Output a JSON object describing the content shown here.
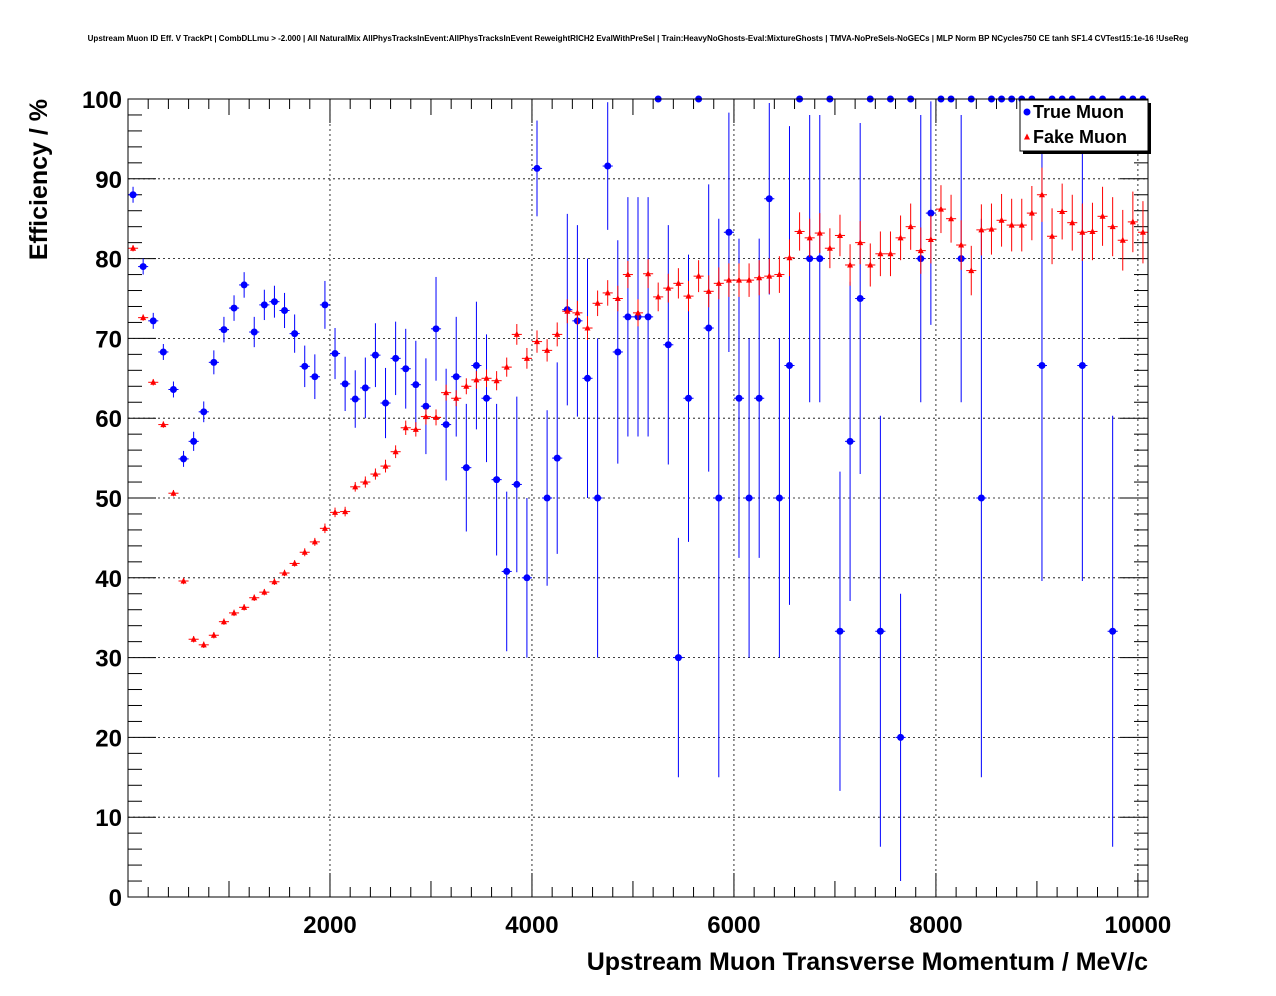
{
  "chart_data": {
    "type": "scatter",
    "title": "Upstream Muon ID Eff. V TrackPt | CombDLLmu > -2.000 | All NaturalMix AllPhysTracksInEvent:AllPhysTracksInEvent ReweightRICH2 EvalWithPreSel | Train:HeavyNoGhosts-Eval:MixtureGhosts | TMVA-NoPreSels-NoGECs | MLP Norm BP NCycles750 CE tanh SF1.4 CVTest15:1e-16 !UseReg",
    "xlabel": "Upstream Muon Transverse Momentum / MeV/c",
    "ylabel": "Efficiency / %",
    "xlim": [
      0,
      10100
    ],
    "ylim": [
      0,
      100
    ],
    "x_ticks": [
      2000,
      4000,
      6000,
      8000,
      10000
    ],
    "y_ticks": [
      0,
      10,
      20,
      30,
      40,
      50,
      60,
      70,
      80,
      90,
      100
    ],
    "grid": true,
    "legend_position": "top-right",
    "series": [
      {
        "name": "True Muon",
        "color": "#0000ff",
        "marker": "circle",
        "x": [
          50,
          150,
          250,
          350,
          450,
          550,
          650,
          750,
          850,
          950,
          1050,
          1150,
          1250,
          1350,
          1450,
          1550,
          1650,
          1750,
          1850,
          1950,
          2050,
          2150,
          2250,
          2350,
          2450,
          2550,
          2650,
          2750,
          2850,
          2950,
          3050,
          3150,
          3250,
          3350,
          3450,
          3550,
          3650,
          3750,
          3850,
          3950,
          4050,
          4150,
          4250,
          4350,
          4450,
          4550,
          4650,
          4750,
          4850,
          4950,
          5050,
          5150,
          5250,
          5350,
          5450,
          5550,
          5650,
          5750,
          5850,
          5950,
          6050,
          6150,
          6250,
          6350,
          6450,
          6550,
          6650,
          6750,
          6850,
          6950,
          7050,
          7150,
          7250,
          7350,
          7450,
          7550,
          7650,
          7750,
          7850,
          7950,
          8050,
          8150,
          8250,
          8350,
          8450,
          8550,
          8650,
          8750,
          8850,
          8950,
          9050,
          9150,
          9250,
          9350,
          9450,
          9550,
          9650,
          9750,
          9850,
          9950,
          10050
        ],
        "y": [
          88.0,
          79.0,
          72.2,
          68.3,
          63.6,
          54.9,
          57.1,
          60.8,
          67.0,
          71.1,
          73.8,
          76.7,
          70.8,
          74.2,
          74.6,
          73.5,
          70.6,
          66.5,
          65.2,
          74.2,
          68.1,
          64.3,
          62.4,
          63.8,
          67.9,
          61.9,
          67.5,
          66.2,
          64.2,
          61.5,
          71.2,
          59.2,
          65.2,
          53.8,
          66.6,
          62.5,
          52.3,
          40.8,
          51.7,
          40.0,
          91.3,
          50.0,
          55.0,
          73.6,
          72.2,
          65.0,
          50.0,
          91.6,
          68.3,
          72.7,
          72.7,
          72.7,
          100.0,
          69.2,
          30.0,
          62.5,
          100.0,
          71.3,
          50.0,
          83.3,
          62.5,
          50.0,
          62.5,
          87.5,
          50.0,
          66.6,
          100.0,
          80.0,
          80.0,
          100.0,
          33.3,
          57.1,
          75.0,
          100.0,
          33.3,
          100.0,
          20.0,
          100.0,
          80.0,
          85.7,
          100.0,
          100.0,
          80.0,
          100.0,
          50.0,
          100.0,
          100.0,
          100.0,
          100.0,
          100.0,
          66.6,
          100.0,
          100.0,
          100.0,
          66.6,
          100.0,
          100.0,
          33.3,
          100.0,
          100.0,
          100.0
        ],
        "err": [
          1.0,
          1.0,
          1.0,
          1.0,
          1.0,
          1.0,
          1.2,
          1.3,
          1.5,
          1.6,
          1.6,
          1.6,
          1.9,
          1.9,
          2.0,
          2.2,
          2.4,
          2.6,
          2.8,
          3.0,
          3.2,
          3.4,
          3.6,
          3.8,
          4.0,
          4.4,
          4.6,
          5.0,
          5.5,
          6.0,
          6.5,
          7.0,
          7.5,
          8.0,
          8.0,
          8.0,
          9.5,
          10.0,
          11.0,
          10.0,
          6.0,
          11.0,
          12.0,
          12.0,
          12.0,
          15.0,
          20.0,
          8.0,
          14.0,
          15.0,
          15.0,
          15.0,
          0,
          15.0,
          15.0,
          18.0,
          0,
          18.0,
          35.0,
          15.0,
          20.0,
          20.0,
          20.0,
          12.0,
          20.0,
          30.0,
          0,
          18.0,
          18.0,
          0,
          20.0,
          20.0,
          22.0,
          0,
          27.0,
          0,
          18.0,
          0,
          18.0,
          14.0,
          0,
          0,
          18.0,
          0,
          35.0,
          0,
          0,
          0,
          0,
          0,
          27.0,
          0,
          0,
          0,
          27.0,
          0,
          0,
          27.0,
          0,
          0,
          0
        ]
      },
      {
        "name": "Fake Muon",
        "color": "#ff0000",
        "marker": "triangle",
        "x": [
          50,
          150,
          250,
          350,
          450,
          550,
          650,
          750,
          850,
          950,
          1050,
          1150,
          1250,
          1350,
          1450,
          1550,
          1650,
          1750,
          1850,
          1950,
          2050,
          2150,
          2250,
          2350,
          2450,
          2550,
          2650,
          2750,
          2850,
          2950,
          3050,
          3150,
          3250,
          3350,
          3450,
          3550,
          3650,
          3750,
          3850,
          3950,
          4050,
          4150,
          4250,
          4350,
          4450,
          4550,
          4650,
          4750,
          4850,
          4950,
          5050,
          5150,
          5250,
          5350,
          5450,
          5550,
          5650,
          5750,
          5850,
          5950,
          6050,
          6150,
          6250,
          6350,
          6450,
          6550,
          6650,
          6750,
          6850,
          6950,
          7050,
          7150,
          7250,
          7350,
          7450,
          7550,
          7650,
          7750,
          7850,
          7950,
          8050,
          8150,
          8250,
          8350,
          8450,
          8550,
          8650,
          8750,
          8850,
          8950,
          9050,
          9150,
          9250,
          9350,
          9450,
          9550,
          9650,
          9750,
          9850,
          9950,
          10050
        ],
        "y": [
          81.3,
          72.6,
          64.5,
          59.2,
          50.6,
          39.6,
          32.3,
          31.6,
          32.8,
          34.5,
          35.6,
          36.3,
          37.5,
          38.2,
          39.5,
          40.6,
          41.8,
          43.2,
          44.5,
          46.2,
          48.2,
          48.3,
          51.4,
          52.0,
          53.0,
          54.0,
          55.8,
          58.8,
          58.6,
          60.2,
          60.1,
          63.2,
          62.5,
          64.0,
          64.8,
          65.0,
          64.7,
          66.4,
          70.5,
          67.5,
          69.6,
          68.5,
          70.5,
          73.4,
          73.2,
          71.3,
          74.4,
          75.7,
          75.0,
          78.0,
          73.2,
          78.1,
          75.2,
          76.3,
          76.9,
          75.3,
          77.8,
          75.9,
          76.9,
          77.3,
          77.3,
          77.3,
          77.6,
          77.8,
          78.0,
          80.1,
          83.4,
          82.6,
          83.2,
          81.3,
          82.9,
          79.2,
          82.0,
          79.2,
          80.6,
          80.6,
          82.6,
          84.0,
          81.0,
          82.4,
          86.2,
          85.0,
          81.7,
          78.5,
          83.6,
          83.7,
          84.8,
          84.2,
          84.2,
          85.7,
          88.0,
          82.8,
          85.9,
          84.5,
          83.3,
          83.4,
          85.3,
          84.0,
          82.3,
          84.6,
          83.3
        ],
        "err": [
          0.4,
          0.4,
          0.4,
          0.4,
          0.4,
          0.4,
          0.4,
          0.4,
          0.4,
          0.4,
          0.4,
          0.4,
          0.4,
          0.4,
          0.4,
          0.4,
          0.4,
          0.5,
          0.5,
          0.6,
          0.6,
          0.6,
          0.6,
          0.7,
          0.7,
          0.8,
          0.8,
          0.9,
          0.9,
          1.0,
          1.0,
          1.0,
          1.0,
          1.0,
          1.1,
          1.1,
          1.2,
          1.2,
          1.3,
          1.3,
          1.4,
          1.4,
          1.5,
          1.5,
          1.5,
          1.5,
          1.6,
          1.6,
          1.6,
          1.7,
          1.7,
          1.8,
          1.8,
          1.8,
          1.9,
          1.9,
          2.0,
          2.0,
          2.0,
          2.1,
          2.1,
          2.1,
          2.2,
          2.2,
          2.3,
          2.3,
          2.4,
          2.4,
          2.5,
          2.5,
          2.6,
          2.6,
          2.7,
          2.7,
          2.8,
          2.8,
          2.8,
          2.9,
          2.9,
          3.0,
          3.0,
          3.0,
          3.1,
          3.1,
          3.2,
          3.2,
          3.3,
          3.3,
          3.3,
          3.4,
          3.4,
          3.5,
          3.5,
          3.5,
          3.6,
          3.6,
          3.7,
          3.7,
          3.8,
          3.8,
          3.9
        ]
      }
    ]
  }
}
